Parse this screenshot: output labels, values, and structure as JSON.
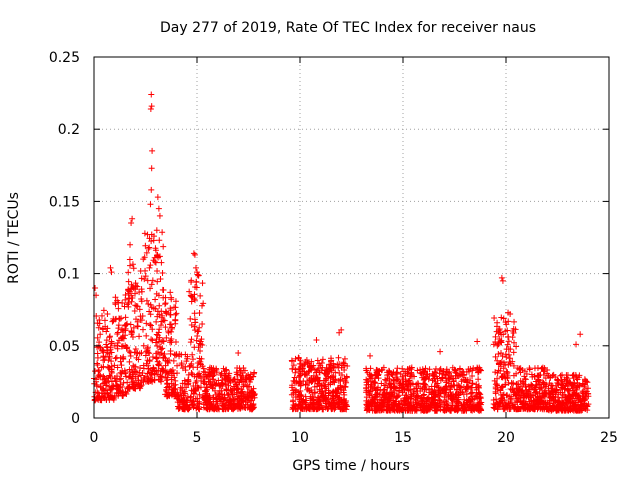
{
  "chart_data": {
    "type": "scatter",
    "title": "Day 277 of 2019, Rate Of TEC Index for receiver naus",
    "xlabel": "GPS time / hours",
    "ylabel": "ROTI / TECUs",
    "xlim": [
      0,
      25
    ],
    "ylim": [
      0,
      0.25
    ],
    "x_ticks": [
      0,
      5,
      10,
      15,
      20,
      25
    ],
    "y_ticks": [
      0,
      0.05,
      0.1,
      0.15,
      0.2,
      0.25
    ],
    "x_tick_labels": [
      "0",
      "5",
      "10",
      "15",
      "20",
      "25"
    ],
    "y_tick_labels": [
      "0",
      "0.05",
      "0.1",
      "0.15",
      "0.2",
      "0.25"
    ],
    "grid": true,
    "marker": "+",
    "marker_color": "#ff0000",
    "series": [
      {
        "name": "ROTI",
        "segments": [
          {
            "x_range": [
              0.0,
              1.0
            ],
            "base": 0.012,
            "typical_max": 0.075
          },
          {
            "x_range": [
              1.0,
              1.6
            ],
            "base": 0.015,
            "typical_max": 0.09
          },
          {
            "x_range": [
              1.6,
              2.4
            ],
            "base": 0.02,
            "typical_max": 0.11
          },
          {
            "x_range": [
              2.4,
              3.4
            ],
            "base": 0.025,
            "typical_max": 0.13
          },
          {
            "x_range": [
              3.4,
              4.0
            ],
            "base": 0.015,
            "typical_max": 0.085
          },
          {
            "x_range": [
              4.0,
              4.6
            ],
            "base": 0.006,
            "typical_max": 0.045
          },
          {
            "x_range": [
              4.6,
              5.3
            ],
            "base": 0.006,
            "typical_max": 0.1
          },
          {
            "x_range": [
              5.3,
              7.8
            ],
            "base": 0.006,
            "typical_max": 0.035
          },
          {
            "x_range": [
              9.6,
              12.3
            ],
            "base": 0.006,
            "typical_max": 0.042
          },
          {
            "x_range": [
              13.2,
              18.8
            ],
            "base": 0.005,
            "typical_max": 0.035
          },
          {
            "x_range": [
              19.4,
              20.5
            ],
            "base": 0.006,
            "typical_max": 0.07
          },
          {
            "x_range": [
              20.5,
              22.0
            ],
            "base": 0.006,
            "typical_max": 0.035
          },
          {
            "x_range": [
              22.0,
              24.0
            ],
            "base": 0.005,
            "typical_max": 0.03
          }
        ],
        "peaks": [
          {
            "x": 2.78,
            "y": 0.224
          },
          {
            "x": 2.8,
            "y": 0.216
          },
          {
            "x": 2.76,
            "y": 0.214
          },
          {
            "x": 2.82,
            "y": 0.185
          },
          {
            "x": 2.8,
            "y": 0.173
          },
          {
            "x": 2.78,
            "y": 0.158
          },
          {
            "x": 2.74,
            "y": 0.148
          },
          {
            "x": 3.1,
            "y": 0.153
          },
          {
            "x": 3.15,
            "y": 0.145
          },
          {
            "x": 3.2,
            "y": 0.14
          },
          {
            "x": 1.85,
            "y": 0.138
          },
          {
            "x": 1.8,
            "y": 0.135
          },
          {
            "x": 3.05,
            "y": 0.13
          },
          {
            "x": 2.6,
            "y": 0.127
          },
          {
            "x": 2.9,
            "y": 0.123
          },
          {
            "x": 1.75,
            "y": 0.12
          },
          {
            "x": 4.85,
            "y": 0.114
          },
          {
            "x": 4.9,
            "y": 0.113
          },
          {
            "x": 4.95,
            "y": 0.104
          },
          {
            "x": 5.0,
            "y": 0.101
          },
          {
            "x": 0.8,
            "y": 0.104
          },
          {
            "x": 0.85,
            "y": 0.101
          },
          {
            "x": 19.8,
            "y": 0.097
          },
          {
            "x": 19.85,
            "y": 0.095
          },
          {
            "x": 0.05,
            "y": 0.09
          },
          {
            "x": 0.1,
            "y": 0.085
          },
          {
            "x": 3.7,
            "y": 0.087
          },
          {
            "x": 20.1,
            "y": 0.073
          },
          {
            "x": 20.2,
            "y": 0.072
          },
          {
            "x": 12.0,
            "y": 0.061
          },
          {
            "x": 11.9,
            "y": 0.059
          },
          {
            "x": 23.6,
            "y": 0.058
          },
          {
            "x": 10.8,
            "y": 0.054
          },
          {
            "x": 16.8,
            "y": 0.046
          },
          {
            "x": 18.6,
            "y": 0.053
          },
          {
            "x": 23.4,
            "y": 0.051
          },
          {
            "x": 13.4,
            "y": 0.043
          },
          {
            "x": 7.0,
            "y": 0.045
          }
        ]
      }
    ]
  }
}
